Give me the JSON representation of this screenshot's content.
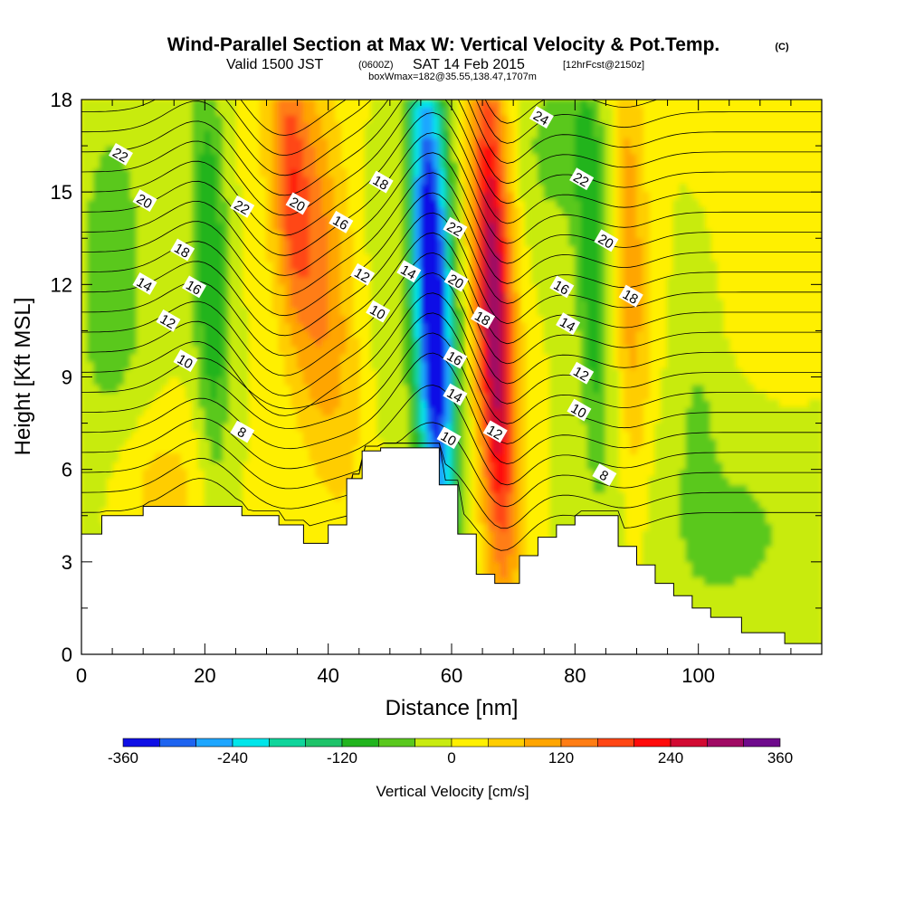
{
  "figure": {
    "title": "Wind-Parallel Section at Max W: Vertical Velocity & Pot.Temp.",
    "copyright": "(C)",
    "subtitle_valid": "Valid 1500 JST",
    "subtitle_utc": "(0600Z)",
    "subtitle_date": "SAT 14 Feb 2015",
    "subtitle_fcst": "[12hrFcst@2150z]",
    "subtitle_box": "boxWmax=182@35.55,138.47,1707m"
  },
  "chart_data": {
    "type": "heatmap",
    "title": "Wind-Parallel Section at Max W: Vertical Velocity & Pot.Temp.",
    "xlabel": "Distance [nm]",
    "ylabel": "Height [Kft MSL]",
    "xlim": [
      0,
      120
    ],
    "ylim": [
      0,
      18
    ],
    "x_ticks": [
      0,
      20,
      40,
      60,
      80,
      100
    ],
    "y_ticks": [
      0,
      3,
      6,
      9,
      12,
      15,
      18
    ],
    "grid": false,
    "colorbar": {
      "label": "Vertical Velocity [cm/s]",
      "ticks": [
        -360,
        -240,
        -120,
        0,
        120,
        240,
        360
      ],
      "bins": [
        {
          "from": -360,
          "to": -320,
          "color": "#0f0fe6"
        },
        {
          "from": -320,
          "to": -280,
          "color": "#1e64f0"
        },
        {
          "from": -280,
          "to": -240,
          "color": "#1ea6ff"
        },
        {
          "from": -240,
          "to": -200,
          "color": "#00e6ea"
        },
        {
          "from": -200,
          "to": -160,
          "color": "#0fd59b"
        },
        {
          "from": -160,
          "to": -120,
          "color": "#1ec369"
        },
        {
          "from": -120,
          "to": -80,
          "color": "#22b41e"
        },
        {
          "from": -80,
          "to": -40,
          "color": "#5ac81e"
        },
        {
          "from": -40,
          "to": 0,
          "color": "#c8eb0f"
        },
        {
          "from": 0,
          "to": 40,
          "color": "#fff000"
        },
        {
          "from": 40,
          "to": 80,
          "color": "#ffcd00"
        },
        {
          "from": 80,
          "to": 120,
          "color": "#ffa500"
        },
        {
          "from": 120,
          "to": 160,
          "color": "#ff7d14"
        },
        {
          "from": 160,
          "to": 200,
          "color": "#ff4614"
        },
        {
          "from": 200,
          "to": 240,
          "color": "#ff0a0a"
        },
        {
          "from": 240,
          "to": 280,
          "color": "#d20a32"
        },
        {
          "from": 280,
          "to": 320,
          "color": "#a00a64"
        },
        {
          "from": 320,
          "to": 360,
          "color": "#6e0a8c"
        }
      ]
    },
    "terrain_profile": {
      "x": [
        0,
        3.3,
        10,
        26,
        32,
        36,
        40,
        43,
        45.5,
        48.5,
        58,
        61,
        64,
        67,
        71,
        74,
        77,
        80,
        87,
        90,
        93,
        96,
        99,
        102,
        107,
        114,
        120
      ],
      "height": [
        3.9,
        4.5,
        4.8,
        4.5,
        4.2,
        3.6,
        4.2,
        5.7,
        6.6,
        6.7,
        5.5,
        3.9,
        2.6,
        2.3,
        3.2,
        3.8,
        4.2,
        4.5,
        3.5,
        2.9,
        2.3,
        1.9,
        1.5,
        1.2,
        0.7,
        0.35,
        0.35
      ]
    },
    "contour_labels": [
      {
        "value": "22",
        "x": 6.3,
        "y": 16.2
      },
      {
        "value": "20",
        "x": 10.2,
        "y": 14.7
      },
      {
        "value": "18",
        "x": 16.3,
        "y": 13.1
      },
      {
        "value": "14",
        "x": 10.2,
        "y": 12.0
      },
      {
        "value": "16",
        "x": 18.2,
        "y": 11.9
      },
      {
        "value": "12",
        "x": 14.0,
        "y": 10.8
      },
      {
        "value": "10",
        "x": 16.8,
        "y": 9.5
      },
      {
        "value": "22",
        "x": 26.0,
        "y": 14.5
      },
      {
        "value": "8",
        "x": 26.0,
        "y": 7.2
      },
      {
        "value": "20",
        "x": 35.0,
        "y": 14.6
      },
      {
        "value": "16",
        "x": 42.0,
        "y": 14.0
      },
      {
        "value": "18",
        "x": 48.5,
        "y": 15.3
      },
      {
        "value": "12",
        "x": 45.5,
        "y": 12.3
      },
      {
        "value": "10",
        "x": 48.0,
        "y": 11.1
      },
      {
        "value": "14",
        "x": 53.0,
        "y": 12.4
      },
      {
        "value": "22",
        "x": 60.5,
        "y": 13.8
      },
      {
        "value": "20",
        "x": 60.7,
        "y": 12.1
      },
      {
        "value": "18",
        "x": 65.0,
        "y": 10.9
      },
      {
        "value": "16",
        "x": 60.5,
        "y": 9.6
      },
      {
        "value": "14",
        "x": 60.5,
        "y": 8.4
      },
      {
        "value": "10",
        "x": 59.5,
        "y": 7.0
      },
      {
        "value": "12",
        "x": 67.0,
        "y": 7.2
      },
      {
        "value": "24",
        "x": 74.5,
        "y": 17.4
      },
      {
        "value": "22",
        "x": 81.0,
        "y": 15.4
      },
      {
        "value": "20",
        "x": 85.0,
        "y": 13.4
      },
      {
        "value": "16",
        "x": 77.8,
        "y": 11.9
      },
      {
        "value": "18",
        "x": 89.0,
        "y": 11.6
      },
      {
        "value": "14",
        "x": 78.8,
        "y": 10.7
      },
      {
        "value": "12",
        "x": 81.0,
        "y": 9.1
      },
      {
        "value": "10",
        "x": 80.6,
        "y": 7.9
      },
      {
        "value": "8",
        "x": 84.7,
        "y": 5.8
      }
    ]
  }
}
